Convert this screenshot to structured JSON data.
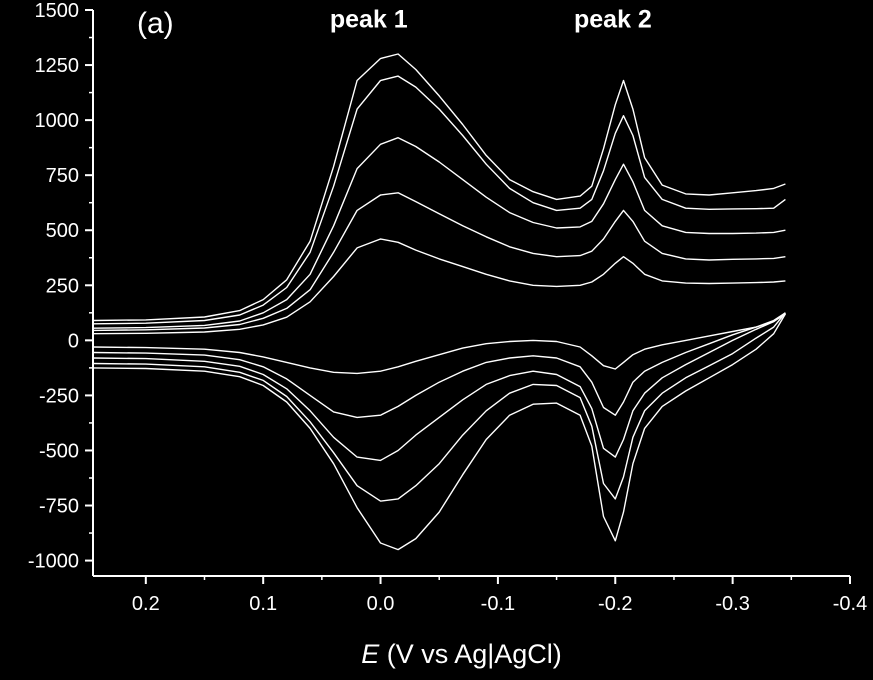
{
  "chart_data": {
    "type": "line",
    "panel_label": "(a)",
    "xlabel_italic": "E",
    "xlabel_rest": " (V vs Ag|AgCl)",
    "ylabel": "",
    "xlim": [
      0.245,
      -0.4
    ],
    "ylim": [
      -1070,
      1500
    ],
    "x_ticks": [
      0.2,
      0.1,
      0.0,
      -0.1,
      -0.2,
      -0.3,
      -0.4
    ],
    "x_tick_labels": [
      "0.2",
      "0.1",
      "0.0",
      "-0.1",
      "-0.2",
      "-0.3",
      "-0.4"
    ],
    "y_ticks": [
      1500,
      1250,
      1000,
      750,
      500,
      250,
      0,
      -250,
      -500,
      -750,
      -1000
    ],
    "y_tick_labels": [
      "1500",
      "1250",
      "1000",
      "750",
      "500",
      "250",
      "0",
      "-250",
      "-500",
      "-750",
      "-1000"
    ],
    "annotations": [
      {
        "text": "peak 1",
        "x": 0.01,
        "y": 1420
      },
      {
        "text": "peak 2",
        "x": -0.198,
        "y": 1420
      }
    ],
    "line_color": "#ffffff",
    "background": "#000000",
    "x": [
      0.245,
      0.2,
      0.15,
      0.12,
      0.1,
      0.08,
      0.06,
      0.04,
      0.02,
      0.0,
      -0.015,
      -0.03,
      -0.05,
      -0.07,
      -0.09,
      -0.11,
      -0.13,
      -0.15,
      -0.17,
      -0.18,
      -0.19,
      -0.2,
      -0.207,
      -0.215,
      -0.225,
      -0.24,
      -0.26,
      -0.28,
      -0.3,
      -0.32,
      -0.335,
      -0.345
    ],
    "series": [
      {
        "forward": [
          30,
          32,
          38,
          50,
          70,
          105,
          175,
          290,
          420,
          460,
          445,
          410,
          370,
          335,
          300,
          270,
          250,
          245,
          250,
          265,
          300,
          350,
          380,
          350,
          300,
          270,
          260,
          258,
          260,
          262,
          265,
          270
        ],
        "reverse": [
          -30,
          -33,
          -40,
          -55,
          -75,
          -100,
          -125,
          -145,
          -150,
          -140,
          -120,
          -95,
          -65,
          -35,
          -15,
          -5,
          0,
          -5,
          -30,
          -70,
          -115,
          -130,
          -100,
          -65,
          -40,
          -20,
          0,
          20,
          40,
          60,
          85,
          120
        ]
      },
      {
        "forward": [
          45,
          48,
          56,
          72,
          100,
          145,
          230,
          400,
          590,
          660,
          670,
          630,
          575,
          520,
          470,
          425,
          395,
          380,
          385,
          405,
          460,
          540,
          590,
          540,
          450,
          395,
          370,
          365,
          368,
          370,
          372,
          380
        ]
      },
      {
        "forward": [
          55,
          58,
          68,
          88,
          125,
          185,
          300,
          520,
          780,
          890,
          920,
          880,
          810,
          730,
          650,
          580,
          535,
          510,
          515,
          540,
          620,
          730,
          800,
          720,
          590,
          520,
          490,
          485,
          485,
          487,
          490,
          500
        ]
      },
      {
        "forward": [
          75,
          78,
          90,
          115,
          160,
          240,
          400,
          700,
          1050,
          1180,
          1200,
          1150,
          1050,
          930,
          800,
          690,
          625,
          590,
          600,
          640,
          770,
          940,
          1020,
          930,
          740,
          640,
          600,
          595,
          597,
          598,
          600,
          640
        ]
      },
      {
        "forward": [
          90,
          93,
          106,
          135,
          185,
          275,
          450,
          790,
          1180,
          1280,
          1300,
          1230,
          1110,
          980,
          840,
          730,
          675,
          640,
          655,
          700,
          870,
          1070,
          1180,
          1050,
          830,
          705,
          665,
          660,
          670,
          680,
          690,
          710
        ],
        "reverse": [
          -125,
          -128,
          -140,
          -165,
          -205,
          -280,
          -400,
          -560,
          -760,
          -920,
          -950,
          -900,
          -780,
          -610,
          -450,
          -340,
          -290,
          -285,
          -340,
          -480,
          -800,
          -910,
          -780,
          -560,
          -400,
          -300,
          -230,
          -170,
          -110,
          -40,
          30,
          120
        ]
      },
      {
        "reverse": [
          -55,
          -58,
          -67,
          -88,
          -120,
          -175,
          -250,
          -325,
          -350,
          -340,
          -300,
          -250,
          -190,
          -140,
          -100,
          -80,
          -70,
          -80,
          -120,
          -190,
          -305,
          -340,
          -280,
          -190,
          -140,
          -100,
          -55,
          -15,
          25,
          60,
          90,
          125
        ]
      },
      {
        "reverse": [
          -80,
          -83,
          -95,
          -118,
          -155,
          -220,
          -320,
          -440,
          -530,
          -545,
          -500,
          -430,
          -350,
          -270,
          -200,
          -160,
          -140,
          -155,
          -210,
          -310,
          -490,
          -530,
          -450,
          -320,
          -240,
          -170,
          -110,
          -55,
          0,
          50,
          85,
          125
        ]
      },
      {
        "reverse": [
          -105,
          -108,
          -120,
          -145,
          -182,
          -255,
          -370,
          -510,
          -660,
          -730,
          -720,
          -660,
          -560,
          -430,
          -320,
          -240,
          -200,
          -205,
          -260,
          -390,
          -650,
          -720,
          -620,
          -440,
          -320,
          -240,
          -170,
          -115,
          -60,
          10,
          60,
          125
        ]
      }
    ]
  }
}
